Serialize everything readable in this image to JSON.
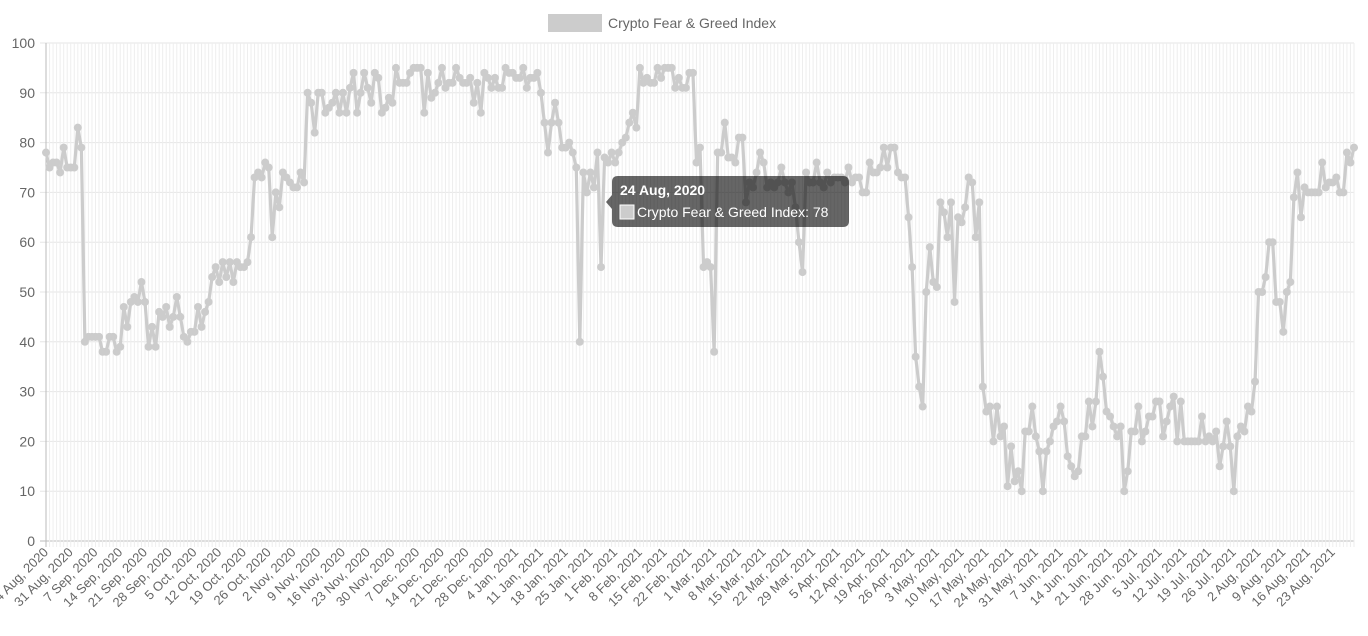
{
  "chart_data": {
    "type": "line",
    "title": "",
    "xlabel": "",
    "ylabel": "",
    "ylim": [
      0,
      100
    ],
    "y_ticks": [
      0,
      10,
      20,
      30,
      40,
      50,
      60,
      70,
      80,
      90,
      100
    ],
    "grid": true,
    "legend_position": "top-center",
    "x_tick_labels": [
      "24 Aug, 2020",
      "31 Aug, 2020",
      "7 Sep, 2020",
      "14 Sep, 2020",
      "21 Sep, 2020",
      "28 Sep, 2020",
      "5 Oct, 2020",
      "12 Oct, 2020",
      "19 Oct, 2020",
      "26 Oct, 2020",
      "2 Nov, 2020",
      "9 Nov, 2020",
      "16 Nov, 2020",
      "23 Nov, 2020",
      "30 Nov, 2020",
      "7 Dec, 2020",
      "14 Dec, 2020",
      "21 Dec, 2020",
      "28 Dec, 2020",
      "4 Jan, 2021",
      "11 Jan, 2021",
      "18 Jan, 2021",
      "25 Jan, 2021",
      "1 Feb, 2021",
      "8 Feb, 2021",
      "15 Feb, 2021",
      "22 Feb, 2021",
      "1 Mar, 2021",
      "8 Mar, 2021",
      "15 Mar, 2021",
      "22 Mar, 2021",
      "29 Mar, 2021",
      "5 Apr, 2021",
      "12 Apr, 2021",
      "19 Apr, 2021",
      "26 Apr, 2021",
      "3 May, 2021",
      "10 May, 2021",
      "17 May, 2021",
      "24 May, 2021",
      "31 May, 2021",
      "7 Jun, 2021",
      "14 Jun, 2021",
      "21 Jun, 2021",
      "28 Jun, 2021",
      "5 Jul, 2021",
      "12 Jul, 2021",
      "19 Jul, 2021",
      "26 Jul, 2021",
      "2 Aug, 2021",
      "9 Aug, 2021",
      "16 Aug, 2021",
      "23 Aug, 2021"
    ],
    "start_date": "24 Aug, 2020",
    "series": [
      {
        "name": "Crypto Fear & Greed Index",
        "color": "#cccccc",
        "values": [
          78,
          75,
          76,
          76,
          74,
          79,
          75,
          75,
          75,
          83,
          79,
          40,
          41,
          41,
          41,
          41,
          38,
          38,
          41,
          41,
          38,
          39,
          47,
          43,
          48,
          49,
          48,
          52,
          48,
          39,
          43,
          39,
          46,
          45,
          47,
          43,
          45,
          49,
          45,
          41,
          40,
          42,
          42,
          47,
          43,
          46,
          48,
          53,
          55,
          52,
          56,
          53,
          56,
          52,
          56,
          55,
          55,
          56,
          61,
          73,
          74,
          73,
          76,
          75,
          61,
          70,
          67,
          74,
          73,
          72,
          71,
          71,
          74,
          72,
          90,
          88,
          82,
          90,
          90,
          86,
          87,
          88,
          90,
          86,
          90,
          86,
          91,
          94,
          86,
          90,
          94,
          91,
          88,
          94,
          93,
          86,
          87,
          89,
          88,
          95,
          92,
          92,
          92,
          94,
          95,
          95,
          95,
          86,
          94,
          89,
          90,
          92,
          95,
          91,
          92,
          92,
          95,
          93,
          92,
          92,
          93,
          88,
          92,
          86,
          94,
          93,
          91,
          93,
          91,
          91,
          95,
          94,
          94,
          93,
          93,
          95,
          91,
          93,
          93,
          94,
          90,
          84,
          78,
          84,
          88,
          84,
          79,
          79,
          80,
          78,
          75,
          40,
          74,
          70,
          74,
          71,
          78,
          55,
          77,
          76,
          78,
          76,
          78,
          80,
          81,
          84,
          86,
          83,
          95,
          92,
          93,
          92,
          92,
          95,
          93,
          95,
          95,
          95,
          91,
          93,
          91,
          91,
          94,
          94,
          76,
          79,
          55,
          56,
          55,
          38,
          78,
          78,
          84,
          77,
          77,
          76,
          81,
          81,
          68,
          72,
          71,
          74,
          78,
          76,
          71,
          72,
          71,
          72,
          75,
          72,
          70,
          72,
          67,
          60,
          54,
          74,
          72,
          72,
          76,
          72,
          71,
          74,
          72,
          73,
          73,
          73,
          72,
          75,
          72,
          73,
          73,
          70,
          70,
          76,
          74,
          74,
          75,
          79,
          75,
          79,
          79,
          74,
          73,
          73,
          65,
          55,
          37,
          31,
          27,
          50,
          59,
          52,
          51,
          68,
          66,
          61,
          68,
          48,
          65,
          64,
          67,
          73,
          72,
          61,
          68,
          31,
          26,
          27,
          20,
          27,
          21,
          23,
          11,
          19,
          12,
          14,
          10,
          22,
          22,
          27,
          21,
          18,
          10,
          18,
          20,
          23,
          24,
          27,
          24,
          17,
          15,
          13,
          14,
          21,
          21,
          28,
          23,
          28,
          38,
          33,
          26,
          25,
          23,
          21,
          23,
          10,
          14,
          22,
          22,
          27,
          20,
          22,
          25,
          25,
          28,
          28,
          21,
          24,
          27,
          29,
          20,
          28,
          20,
          20,
          20,
          20,
          20,
          25,
          20,
          21,
          20,
          22,
          15,
          19,
          24,
          19,
          10,
          21,
          23,
          22,
          27,
          26,
          32,
          50,
          50,
          53,
          60,
          60,
          48,
          48,
          42,
          50,
          52,
          69,
          74,
          65,
          71,
          70,
          70,
          70,
          70,
          76,
          71,
          72,
          72,
          73,
          70,
          70,
          78,
          76,
          79
        ]
      }
    ],
    "legend": [
      {
        "label": "Crypto Fear & Greed Index",
        "color": "#cccccc"
      }
    ],
    "tooltip": {
      "title": "24 Aug, 2020",
      "body": "Crypto Fear & Greed Index: 78",
      "color": "#cccccc"
    }
  }
}
